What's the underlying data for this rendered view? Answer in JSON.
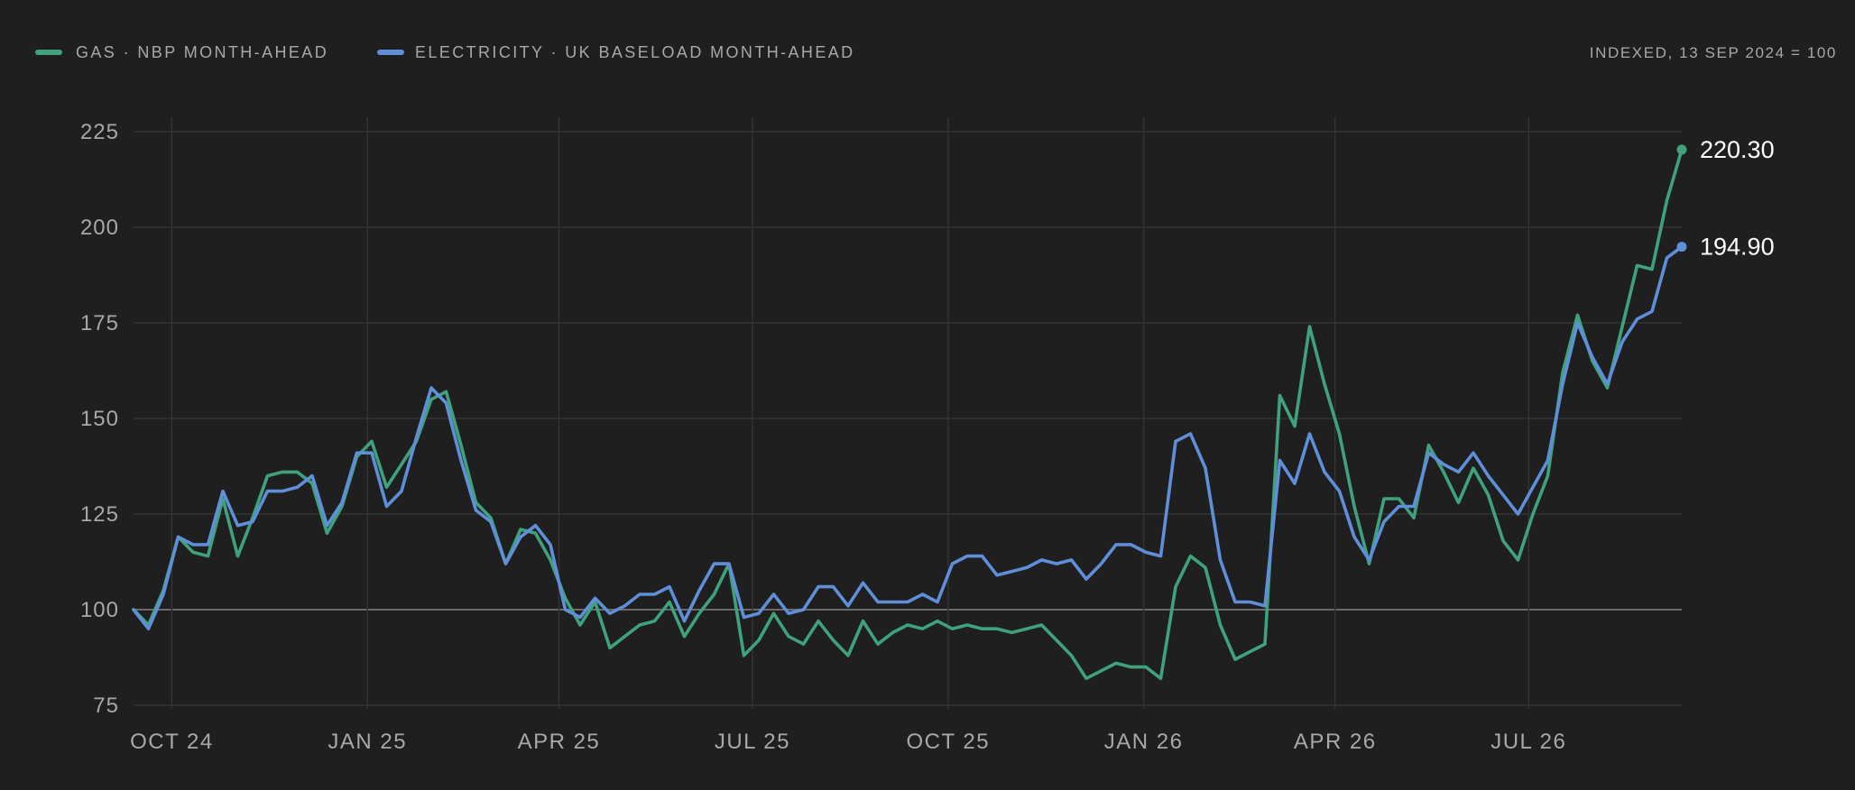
{
  "legend": {
    "items": [
      {
        "label": "GAS · NBP MONTH-AHEAD",
        "color": "#3fa27c"
      },
      {
        "label": "ELECTRICITY · UK BASELOAD MONTH-AHEAD",
        "color": "#5f8fd8"
      }
    ],
    "note": "INDEXED, 13 SEP 2024 = 100"
  },
  "chart_data": {
    "type": "line",
    "x_axis": {
      "type": "date",
      "range": [
        "2024-09-13",
        "2026-09-11"
      ],
      "ticks": [
        {
          "date": "2024-10-01",
          "label": "OCT 24"
        },
        {
          "date": "2025-01-01",
          "label": "JAN 25"
        },
        {
          "date": "2025-04-01",
          "label": "APR 25"
        },
        {
          "date": "2025-07-01",
          "label": "JUL 25"
        },
        {
          "date": "2025-10-01",
          "label": "OCT 25"
        },
        {
          "date": "2026-01-01",
          "label": "JAN 26"
        },
        {
          "date": "2026-04-01",
          "label": "APR 26"
        },
        {
          "date": "2026-07-01",
          "label": "JUL 26"
        }
      ]
    },
    "y_axis": {
      "range": [
        75,
        228
      ],
      "ticks": [
        75,
        100,
        125,
        150,
        175,
        200,
        225
      ],
      "baseline": 100
    },
    "grid": true,
    "series": [
      {
        "name": "GAS · NBP MONTH-AHEAD",
        "color": "#3fa27c",
        "last_label": "220.30",
        "points": [
          [
            "2024-09-13",
            100
          ],
          [
            "2024-09-20",
            96
          ],
          [
            "2024-09-27",
            105
          ],
          [
            "2024-10-04",
            119
          ],
          [
            "2024-10-11",
            115
          ],
          [
            "2024-10-18",
            114
          ],
          [
            "2024-10-25",
            129
          ],
          [
            "2024-11-01",
            114
          ],
          [
            "2024-11-08",
            124
          ],
          [
            "2024-11-15",
            135
          ],
          [
            "2024-11-22",
            136
          ],
          [
            "2024-11-29",
            136
          ],
          [
            "2024-12-06",
            133
          ],
          [
            "2024-12-13",
            120
          ],
          [
            "2024-12-20",
            127
          ],
          [
            "2024-12-27",
            140
          ],
          [
            "2025-01-03",
            144
          ],
          [
            "2025-01-10",
            132
          ],
          [
            "2025-01-17",
            138
          ],
          [
            "2025-01-24",
            144
          ],
          [
            "2025-01-31",
            155
          ],
          [
            "2025-02-07",
            157
          ],
          [
            "2025-02-14",
            143
          ],
          [
            "2025-02-21",
            128
          ],
          [
            "2025-02-28",
            124
          ],
          [
            "2025-03-07",
            112
          ],
          [
            "2025-03-14",
            121
          ],
          [
            "2025-03-21",
            120
          ],
          [
            "2025-03-28",
            113
          ],
          [
            "2025-04-04",
            103
          ],
          [
            "2025-04-11",
            96
          ],
          [
            "2025-04-18",
            102
          ],
          [
            "2025-04-25",
            90
          ],
          [
            "2025-05-02",
            93
          ],
          [
            "2025-05-09",
            96
          ],
          [
            "2025-05-16",
            97
          ],
          [
            "2025-05-23",
            102
          ],
          [
            "2025-05-30",
            93
          ],
          [
            "2025-06-06",
            99
          ],
          [
            "2025-06-13",
            104
          ],
          [
            "2025-06-20",
            112
          ],
          [
            "2025-06-27",
            88
          ],
          [
            "2025-07-04",
            92
          ],
          [
            "2025-07-11",
            99
          ],
          [
            "2025-07-18",
            93
          ],
          [
            "2025-07-25",
            91
          ],
          [
            "2025-08-01",
            97
          ],
          [
            "2025-08-08",
            92
          ],
          [
            "2025-08-15",
            88
          ],
          [
            "2025-08-22",
            97
          ],
          [
            "2025-08-29",
            91
          ],
          [
            "2025-09-05",
            94
          ],
          [
            "2025-09-12",
            96
          ],
          [
            "2025-09-19",
            95
          ],
          [
            "2025-09-26",
            97
          ],
          [
            "2025-10-03",
            95
          ],
          [
            "2025-10-10",
            96
          ],
          [
            "2025-10-17",
            95
          ],
          [
            "2025-10-24",
            95
          ],
          [
            "2025-10-31",
            94
          ],
          [
            "2025-11-07",
            95
          ],
          [
            "2025-11-14",
            96
          ],
          [
            "2025-11-21",
            92
          ],
          [
            "2025-11-28",
            88
          ],
          [
            "2025-12-05",
            82
          ],
          [
            "2025-12-12",
            84
          ],
          [
            "2025-12-19",
            86
          ],
          [
            "2025-12-26",
            85
          ],
          [
            "2026-01-02",
            85
          ],
          [
            "2026-01-09",
            82
          ],
          [
            "2026-01-16",
            106
          ],
          [
            "2026-01-23",
            114
          ],
          [
            "2026-01-30",
            111
          ],
          [
            "2026-02-06",
            96
          ],
          [
            "2026-02-13",
            87
          ],
          [
            "2026-02-20",
            89
          ],
          [
            "2026-02-27",
            91
          ],
          [
            "2026-03-06",
            156
          ],
          [
            "2026-03-13",
            148
          ],
          [
            "2026-03-20",
            174
          ],
          [
            "2026-03-27",
            159
          ],
          [
            "2026-04-03",
            146
          ],
          [
            "2026-04-10",
            127
          ],
          [
            "2026-04-17",
            112
          ],
          [
            "2026-04-24",
            129
          ],
          [
            "2026-05-01",
            129
          ],
          [
            "2026-05-08",
            124
          ],
          [
            "2026-05-15",
            143
          ],
          [
            "2026-05-22",
            136
          ],
          [
            "2026-05-29",
            128
          ],
          [
            "2026-06-05",
            137
          ],
          [
            "2026-06-12",
            130
          ],
          [
            "2026-06-19",
            118
          ],
          [
            "2026-06-26",
            113
          ],
          [
            "2026-07-03",
            125
          ],
          [
            "2026-07-10",
            135
          ],
          [
            "2026-07-17",
            162
          ],
          [
            "2026-07-24",
            177
          ],
          [
            "2026-07-31",
            165
          ],
          [
            "2026-08-07",
            158
          ],
          [
            "2026-08-14",
            174
          ],
          [
            "2026-08-21",
            190
          ],
          [
            "2026-08-28",
            189
          ],
          [
            "2026-09-04",
            207
          ],
          [
            "2026-09-11",
            220.3
          ]
        ]
      },
      {
        "name": "ELECTRICITY · UK BASELOAD MONTH-AHEAD",
        "color": "#5f8fd8",
        "last_label": "194.90",
        "points": [
          [
            "2024-09-13",
            100
          ],
          [
            "2024-09-20",
            95
          ],
          [
            "2024-09-27",
            104
          ],
          [
            "2024-10-04",
            119
          ],
          [
            "2024-10-11",
            117
          ],
          [
            "2024-10-18",
            117
          ],
          [
            "2024-10-25",
            131
          ],
          [
            "2024-11-01",
            122
          ],
          [
            "2024-11-08",
            123
          ],
          [
            "2024-11-15",
            131
          ],
          [
            "2024-11-22",
            131
          ],
          [
            "2024-11-29",
            132
          ],
          [
            "2024-12-06",
            135
          ],
          [
            "2024-12-13",
            122
          ],
          [
            "2024-12-20",
            128
          ],
          [
            "2024-12-27",
            141
          ],
          [
            "2025-01-03",
            141
          ],
          [
            "2025-01-10",
            127
          ],
          [
            "2025-01-17",
            131
          ],
          [
            "2025-01-24",
            145
          ],
          [
            "2025-01-31",
            158
          ],
          [
            "2025-02-07",
            154
          ],
          [
            "2025-02-14",
            139
          ],
          [
            "2025-02-21",
            126
          ],
          [
            "2025-02-28",
            123
          ],
          [
            "2025-03-07",
            112
          ],
          [
            "2025-03-14",
            119
          ],
          [
            "2025-03-21",
            122
          ],
          [
            "2025-03-28",
            117
          ],
          [
            "2025-04-04",
            100
          ],
          [
            "2025-04-11",
            98
          ],
          [
            "2025-04-18",
            103
          ],
          [
            "2025-04-25",
            99
          ],
          [
            "2025-05-02",
            101
          ],
          [
            "2025-05-09",
            104
          ],
          [
            "2025-05-16",
            104
          ],
          [
            "2025-05-23",
            106
          ],
          [
            "2025-05-30",
            97
          ],
          [
            "2025-06-06",
            105
          ],
          [
            "2025-06-13",
            112
          ],
          [
            "2025-06-20",
            112
          ],
          [
            "2025-06-27",
            98
          ],
          [
            "2025-07-04",
            99
          ],
          [
            "2025-07-11",
            104
          ],
          [
            "2025-07-18",
            99
          ],
          [
            "2025-07-25",
            100
          ],
          [
            "2025-08-01",
            106
          ],
          [
            "2025-08-08",
            106
          ],
          [
            "2025-08-15",
            101
          ],
          [
            "2025-08-22",
            107
          ],
          [
            "2025-08-29",
            102
          ],
          [
            "2025-09-05",
            102
          ],
          [
            "2025-09-12",
            102
          ],
          [
            "2025-09-19",
            104
          ],
          [
            "2025-09-26",
            102
          ],
          [
            "2025-10-03",
            112
          ],
          [
            "2025-10-10",
            114
          ],
          [
            "2025-10-17",
            114
          ],
          [
            "2025-10-24",
            109
          ],
          [
            "2025-10-31",
            110
          ],
          [
            "2025-11-07",
            111
          ],
          [
            "2025-11-14",
            113
          ],
          [
            "2025-11-21",
            112
          ],
          [
            "2025-11-28",
            113
          ],
          [
            "2025-12-05",
            108
          ],
          [
            "2025-12-12",
            112
          ],
          [
            "2025-12-19",
            117
          ],
          [
            "2025-12-26",
            117
          ],
          [
            "2026-01-02",
            115
          ],
          [
            "2026-01-09",
            114
          ],
          [
            "2026-01-16",
            144
          ],
          [
            "2026-01-23",
            146
          ],
          [
            "2026-01-30",
            137
          ],
          [
            "2026-02-06",
            113
          ],
          [
            "2026-02-13",
            102
          ],
          [
            "2026-02-20",
            102
          ],
          [
            "2026-02-27",
            101
          ],
          [
            "2026-03-06",
            139
          ],
          [
            "2026-03-13",
            133
          ],
          [
            "2026-03-20",
            146
          ],
          [
            "2026-03-27",
            136
          ],
          [
            "2026-04-03",
            131
          ],
          [
            "2026-04-10",
            119
          ],
          [
            "2026-04-17",
            113
          ],
          [
            "2026-04-24",
            123
          ],
          [
            "2026-05-01",
            127
          ],
          [
            "2026-05-08",
            127
          ],
          [
            "2026-05-15",
            141
          ],
          [
            "2026-05-22",
            138
          ],
          [
            "2026-05-29",
            136
          ],
          [
            "2026-06-05",
            141
          ],
          [
            "2026-06-12",
            135
          ],
          [
            "2026-06-19",
            130
          ],
          [
            "2026-06-26",
            125
          ],
          [
            "2026-07-03",
            132
          ],
          [
            "2026-07-10",
            139
          ],
          [
            "2026-07-17",
            159
          ],
          [
            "2026-07-24",
            175
          ],
          [
            "2026-07-31",
            166
          ],
          [
            "2026-08-07",
            159
          ],
          [
            "2026-08-14",
            170
          ],
          [
            "2026-08-21",
            176
          ],
          [
            "2026-08-28",
            178
          ],
          [
            "2026-09-04",
            192
          ],
          [
            "2026-09-11",
            194.9
          ]
        ]
      }
    ]
  }
}
